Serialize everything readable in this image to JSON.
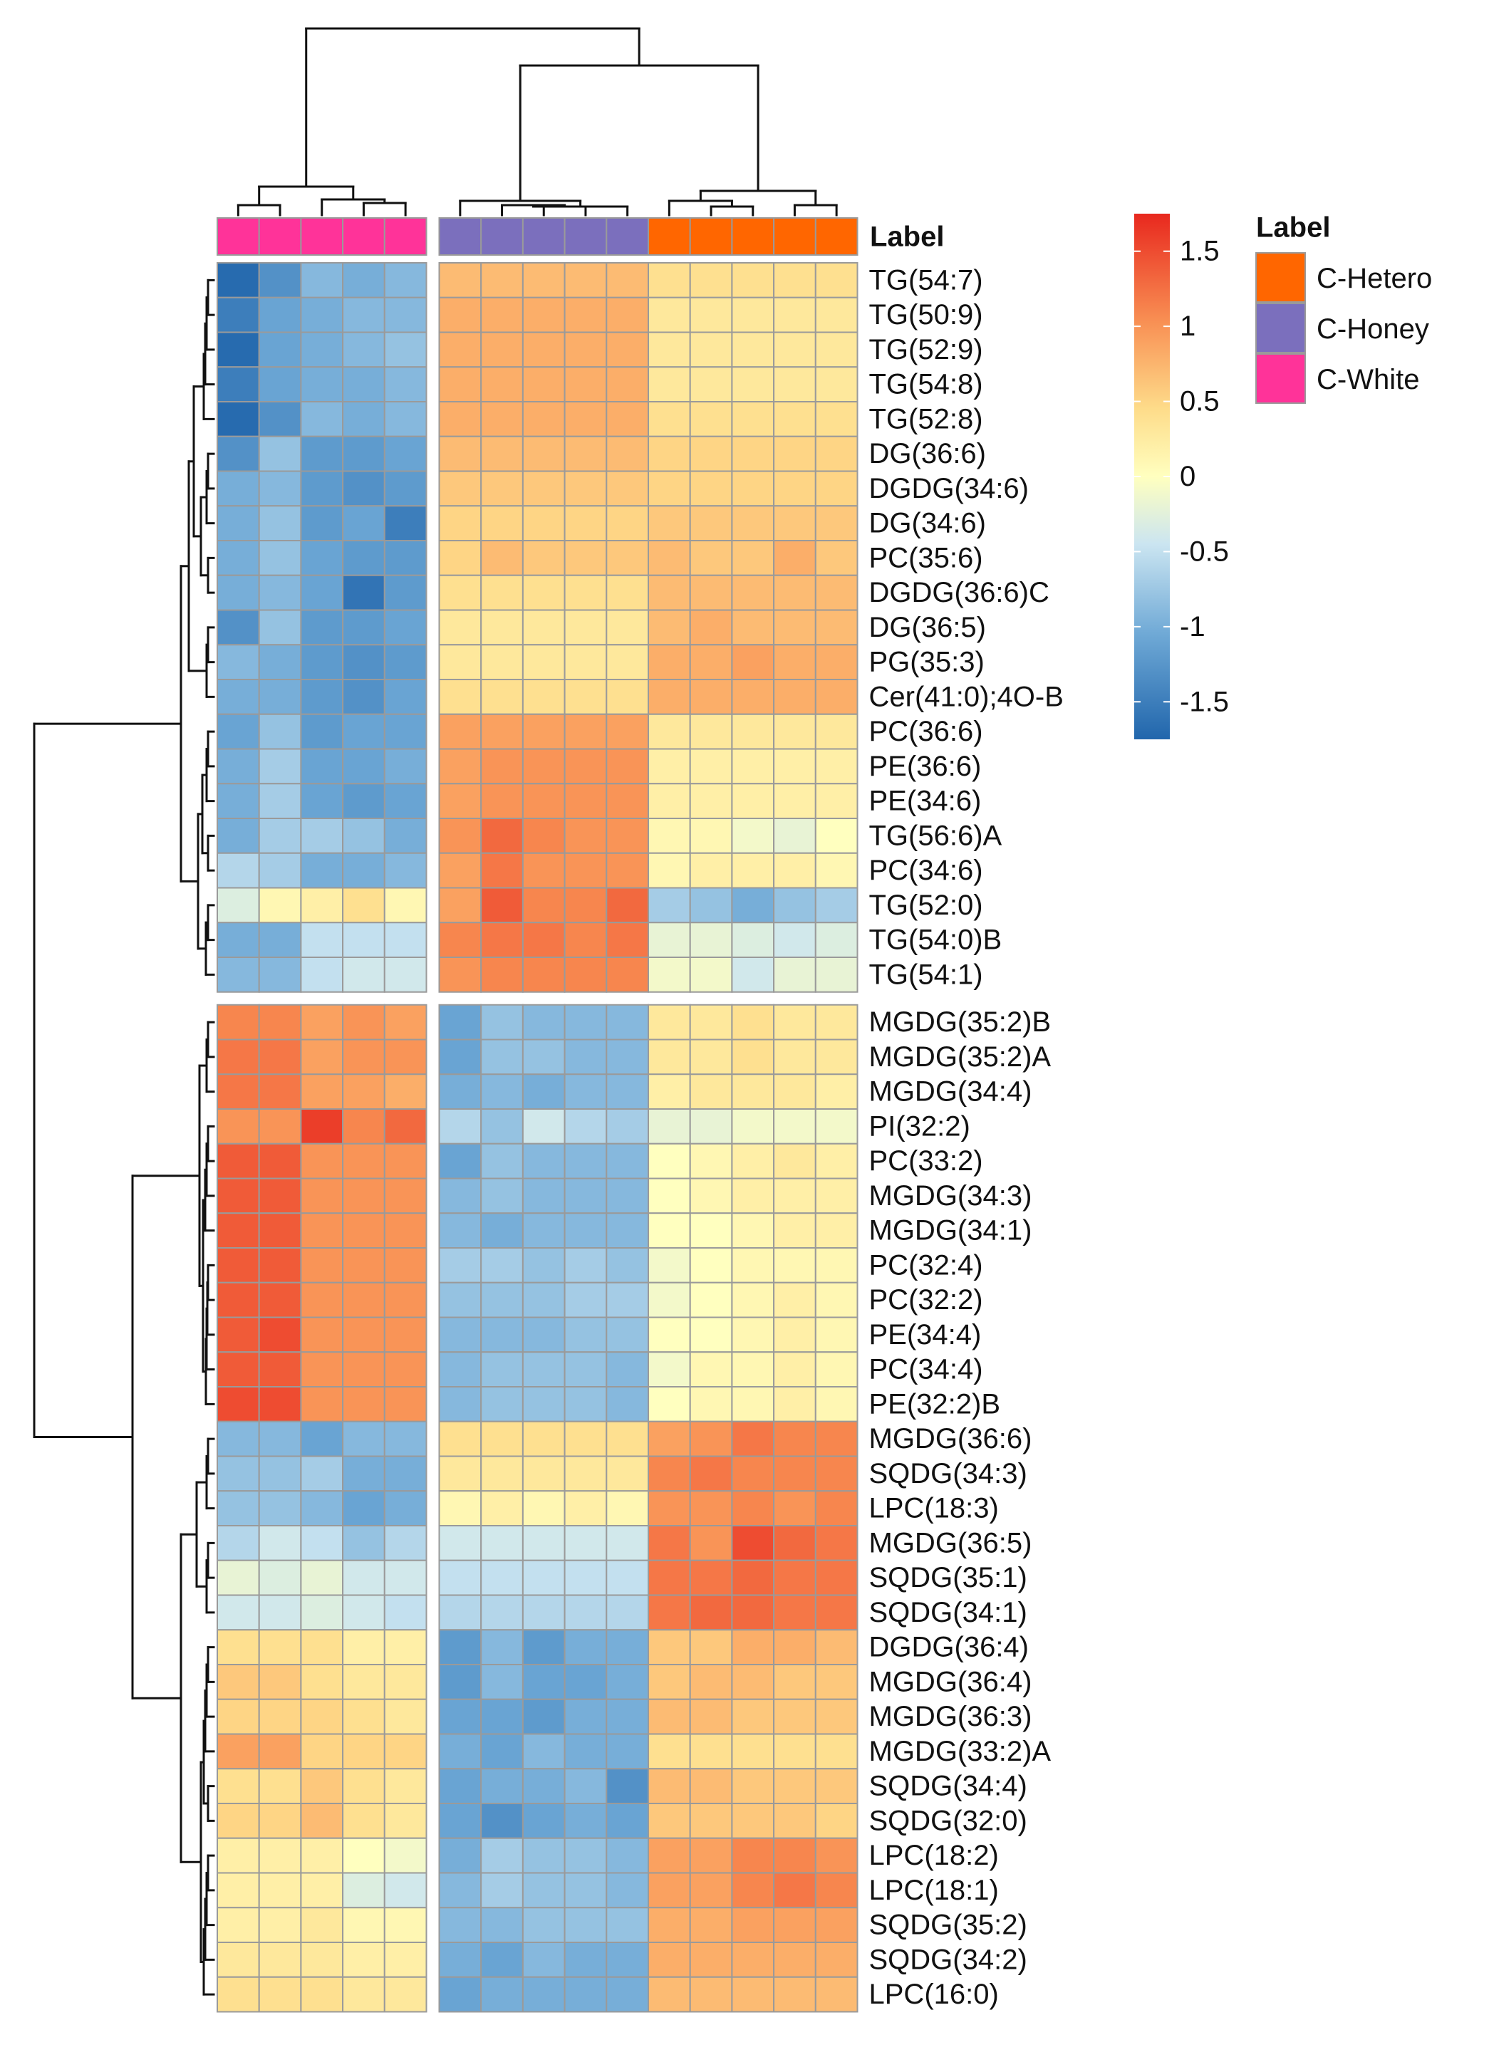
{
  "chart_data": {
    "type": "heatmap",
    "title": "",
    "annotation_title": "Label",
    "columns": [
      {
        "group": "C-White"
      },
      {
        "group": "C-White"
      },
      {
        "group": "C-White"
      },
      {
        "group": "C-White"
      },
      {
        "group": "C-White"
      },
      {
        "group": "C-Honey"
      },
      {
        "group": "C-Honey"
      },
      {
        "group": "C-Honey"
      },
      {
        "group": "C-Honey"
      },
      {
        "group": "C-Honey"
      },
      {
        "group": "C-Hetero"
      },
      {
        "group": "C-Hetero"
      },
      {
        "group": "C-Hetero"
      },
      {
        "group": "C-Hetero"
      },
      {
        "group": "C-Hetero"
      }
    ],
    "row_split_after": 21,
    "rows": [
      "TG(54:7)",
      "TG(50:9)",
      "TG(52:9)",
      "TG(54:8)",
      "TG(52:8)",
      "DG(36:6)",
      "DGDG(34:6)",
      "DG(34:6)",
      "PC(35:6)",
      "DGDG(36:6)C",
      "DG(36:5)",
      "PG(35:3)",
      "Cer(41:0);4O-B",
      "PC(36:6)",
      "PE(36:6)",
      "PE(34:6)",
      "TG(56:6)A",
      "PC(34:6)",
      "TG(52:0)",
      "TG(54:0)B",
      "TG(54:1)",
      "MGDG(35:2)B",
      "MGDG(35:2)A",
      "MGDG(34:4)",
      "PI(32:2)",
      "PC(33:2)",
      "MGDG(34:3)",
      "MGDG(34:1)",
      "PC(32:4)",
      "PC(32:2)",
      "PE(34:4)",
      "PC(34:4)",
      "PE(32:2)B",
      "MGDG(36:6)",
      "SQDG(34:3)",
      "LPC(18:3)",
      "MGDG(36:5)",
      "SQDG(35:1)",
      "SQDG(34:1)",
      "DGDG(36:4)",
      "MGDG(36:4)",
      "MGDG(36:3)",
      "MGDG(33:2)A",
      "SQDG(34:4)",
      "SQDG(32:0)",
      "LPC(18:2)",
      "LPC(18:1)",
      "SQDG(35:2)",
      "SQDG(34:2)",
      "LPC(16:0)"
    ],
    "values": [
      [
        -1.7,
        -1.3,
        -0.9,
        -1.0,
        -0.9,
        0.7,
        0.7,
        0.7,
        0.7,
        0.7,
        0.4,
        0.4,
        0.4,
        0.4,
        0.4
      ],
      [
        -1.5,
        -1.1,
        -1.0,
        -0.9,
        -0.9,
        0.8,
        0.8,
        0.8,
        0.8,
        0.8,
        0.3,
        0.3,
        0.3,
        0.3,
        0.3
      ],
      [
        -1.7,
        -1.1,
        -1.0,
        -0.9,
        -0.8,
        0.8,
        0.8,
        0.8,
        0.8,
        0.8,
        0.3,
        0.3,
        0.3,
        0.3,
        0.3
      ],
      [
        -1.5,
        -1.1,
        -1.0,
        -1.0,
        -0.9,
        0.8,
        0.8,
        0.8,
        0.8,
        0.8,
        0.3,
        0.3,
        0.3,
        0.3,
        0.3
      ],
      [
        -1.7,
        -1.3,
        -0.9,
        -1.0,
        -0.9,
        0.8,
        0.8,
        0.8,
        0.8,
        0.8,
        0.4,
        0.4,
        0.4,
        0.4,
        0.4
      ],
      [
        -1.3,
        -0.8,
        -1.2,
        -1.2,
        -1.1,
        0.7,
        0.7,
        0.7,
        0.7,
        0.7,
        0.5,
        0.5,
        0.5,
        0.5,
        0.5
      ],
      [
        -1.0,
        -0.9,
        -1.2,
        -1.3,
        -1.2,
        0.6,
        0.6,
        0.6,
        0.6,
        0.6,
        0.5,
        0.5,
        0.5,
        0.5,
        0.5
      ],
      [
        -1.0,
        -0.8,
        -1.2,
        -1.1,
        -1.5,
        0.5,
        0.5,
        0.5,
        0.5,
        0.5,
        0.6,
        0.6,
        0.6,
        0.6,
        0.6
      ],
      [
        -1.0,
        -0.8,
        -1.1,
        -1.2,
        -1.2,
        0.5,
        0.7,
        0.6,
        0.6,
        0.6,
        0.7,
        0.6,
        0.6,
        0.8,
        0.6
      ],
      [
        -1.0,
        -0.9,
        -1.1,
        -1.6,
        -1.2,
        0.4,
        0.4,
        0.4,
        0.4,
        0.4,
        0.7,
        0.7,
        0.7,
        0.7,
        0.7
      ],
      [
        -1.3,
        -0.8,
        -1.2,
        -1.2,
        -1.1,
        0.3,
        0.3,
        0.3,
        0.3,
        0.3,
        0.7,
        0.8,
        0.7,
        0.7,
        0.7
      ],
      [
        -0.9,
        -1.0,
        -1.2,
        -1.3,
        -1.2,
        0.3,
        0.3,
        0.3,
        0.3,
        0.3,
        0.8,
        0.8,
        0.9,
        0.8,
        0.8
      ],
      [
        -1.0,
        -1.0,
        -1.2,
        -1.3,
        -1.1,
        0.4,
        0.4,
        0.4,
        0.4,
        0.4,
        0.8,
        0.8,
        0.8,
        0.8,
        0.8
      ],
      [
        -1.1,
        -0.8,
        -1.2,
        -1.1,
        -1.1,
        0.9,
        0.9,
        0.9,
        0.9,
        0.9,
        0.3,
        0.3,
        0.3,
        0.3,
        0.3
      ],
      [
        -1.0,
        -0.7,
        -1.1,
        -1.1,
        -1.0,
        0.9,
        1.0,
        1.0,
        1.0,
        1.0,
        0.2,
        0.2,
        0.2,
        0.2,
        0.2
      ],
      [
        -1.0,
        -0.7,
        -1.1,
        -1.2,
        -1.1,
        0.9,
        1.0,
        1.0,
        1.0,
        1.0,
        0.2,
        0.2,
        0.2,
        0.2,
        0.2
      ],
      [
        -1.0,
        -0.7,
        -0.7,
        -0.8,
        -1.0,
        1.0,
        1.3,
        1.1,
        1.0,
        1.0,
        0.1,
        0.1,
        -0.1,
        -0.2,
        0.0
      ],
      [
        -0.6,
        -0.7,
        -1.0,
        -1.0,
        -0.9,
        0.9,
        1.2,
        1.0,
        1.0,
        1.0,
        0.1,
        0.2,
        0.2,
        0.2,
        0.1
      ],
      [
        -0.3,
        0.1,
        0.2,
        0.4,
        0.1,
        0.9,
        1.4,
        1.1,
        1.1,
        1.3,
        -0.7,
        -0.8,
        -1.0,
        -0.8,
        -0.7
      ],
      [
        -1.0,
        -1.0,
        -0.5,
        -0.5,
        -0.5,
        1.1,
        1.2,
        1.2,
        1.1,
        1.2,
        -0.2,
        -0.2,
        -0.3,
        -0.4,
        -0.3
      ],
      [
        -0.9,
        -0.9,
        -0.5,
        -0.4,
        -0.4,
        1.0,
        1.1,
        1.1,
        1.1,
        1.1,
        -0.1,
        -0.1,
        -0.4,
        -0.2,
        -0.2
      ],
      [
        1.1,
        1.1,
        0.9,
        1.0,
        0.9,
        -1.1,
        -0.8,
        -0.9,
        -0.9,
        -0.9,
        0.3,
        0.3,
        0.4,
        0.3,
        0.3
      ],
      [
        1.2,
        1.2,
        0.9,
        1.0,
        1.0,
        -1.1,
        -0.8,
        -0.8,
        -0.9,
        -0.9,
        0.3,
        0.3,
        0.4,
        0.3,
        0.3
      ],
      [
        1.2,
        1.2,
        0.9,
        0.9,
        0.8,
        -1.0,
        -0.9,
        -1.0,
        -0.9,
        -0.9,
        0.2,
        0.3,
        0.3,
        0.3,
        0.2
      ],
      [
        1.0,
        1.0,
        1.6,
        1.1,
        1.3,
        -0.6,
        -0.8,
        -0.4,
        -0.6,
        -0.7,
        -0.2,
        -0.2,
        -0.1,
        -0.1,
        -0.1
      ],
      [
        1.4,
        1.4,
        1.0,
        1.0,
        1.0,
        -1.1,
        -0.8,
        -0.9,
        -0.9,
        -0.9,
        0.0,
        0.1,
        0.2,
        0.3,
        0.2
      ],
      [
        1.4,
        1.4,
        1.0,
        1.0,
        1.0,
        -0.9,
        -0.8,
        -0.9,
        -0.9,
        -0.9,
        0.0,
        0.1,
        0.2,
        0.2,
        0.2
      ],
      [
        1.4,
        1.4,
        1.0,
        1.0,
        1.0,
        -0.9,
        -1.0,
        -0.9,
        -0.9,
        -0.9,
        0.0,
        0.0,
        0.1,
        0.2,
        0.2
      ],
      [
        1.4,
        1.4,
        1.0,
        1.0,
        1.0,
        -0.7,
        -0.7,
        -0.8,
        -0.7,
        -0.8,
        -0.1,
        0.0,
        0.1,
        0.1,
        0.1
      ],
      [
        1.4,
        1.4,
        1.0,
        1.0,
        1.0,
        -0.8,
        -0.8,
        -0.8,
        -0.7,
        -0.7,
        -0.1,
        0.0,
        0.1,
        0.2,
        0.1
      ],
      [
        1.4,
        1.5,
        1.0,
        1.0,
        1.0,
        -0.9,
        -0.9,
        -0.9,
        -0.8,
        -0.8,
        0.0,
        0.0,
        0.1,
        0.2,
        0.1
      ],
      [
        1.4,
        1.4,
        1.0,
        1.0,
        1.0,
        -0.9,
        -0.8,
        -0.8,
        -0.8,
        -0.9,
        -0.1,
        0.1,
        0.1,
        0.2,
        0.1
      ],
      [
        1.5,
        1.5,
        1.0,
        1.0,
        1.0,
        -0.9,
        -0.8,
        -0.8,
        -0.8,
        -0.9,
        0.0,
        0.1,
        0.1,
        0.2,
        0.1
      ],
      [
        -0.9,
        -0.9,
        -1.1,
        -0.9,
        -0.9,
        0.4,
        0.4,
        0.4,
        0.4,
        0.4,
        0.9,
        1.0,
        1.2,
        1.1,
        1.1
      ],
      [
        -0.8,
        -0.8,
        -0.7,
        -1.0,
        -1.0,
        0.3,
        0.3,
        0.3,
        0.3,
        0.3,
        1.1,
        1.2,
        1.1,
        1.1,
        1.1
      ],
      [
        -0.8,
        -0.8,
        -0.9,
        -1.1,
        -1.0,
        0.1,
        0.2,
        0.1,
        0.2,
        0.1,
        1.0,
        1.0,
        1.1,
        1.0,
        1.1
      ],
      [
        -0.6,
        -0.4,
        -0.5,
        -0.8,
        -0.6,
        -0.4,
        -0.4,
        -0.4,
        -0.4,
        -0.4,
        1.2,
        1.0,
        1.5,
        1.3,
        1.2
      ],
      [
        -0.2,
        -0.3,
        -0.2,
        -0.4,
        -0.4,
        -0.5,
        -0.5,
        -0.5,
        -0.5,
        -0.5,
        1.2,
        1.2,
        1.3,
        1.2,
        1.2
      ],
      [
        -0.4,
        -0.4,
        -0.3,
        -0.4,
        -0.5,
        -0.6,
        -0.6,
        -0.6,
        -0.6,
        -0.6,
        1.2,
        1.3,
        1.3,
        1.2,
        1.2
      ],
      [
        0.4,
        0.4,
        0.4,
        0.2,
        0.2,
        -1.2,
        -0.9,
        -1.2,
        -1.0,
        -1.0,
        0.6,
        0.6,
        0.8,
        0.8,
        0.7
      ],
      [
        0.6,
        0.6,
        0.4,
        0.3,
        0.3,
        -1.2,
        -0.9,
        -1.1,
        -1.1,
        -1.0,
        0.6,
        0.7,
        0.7,
        0.6,
        0.6
      ],
      [
        0.5,
        0.5,
        0.5,
        0.4,
        0.3,
        -1.1,
        -1.1,
        -1.2,
        -1.0,
        -1.0,
        0.7,
        0.7,
        0.6,
        0.6,
        0.6
      ],
      [
        0.9,
        0.9,
        0.5,
        0.5,
        0.5,
        -1.0,
        -1.1,
        -0.9,
        -1.0,
        -1.0,
        0.4,
        0.4,
        0.4,
        0.4,
        0.4
      ],
      [
        0.4,
        0.4,
        0.6,
        0.4,
        0.3,
        -1.1,
        -1.0,
        -1.0,
        -0.9,
        -1.3,
        0.7,
        0.7,
        0.6,
        0.6,
        0.6
      ],
      [
        0.5,
        0.5,
        0.7,
        0.4,
        0.3,
        -1.1,
        -1.3,
        -1.1,
        -1.0,
        -1.1,
        0.6,
        0.6,
        0.6,
        0.6,
        0.5
      ],
      [
        0.2,
        0.2,
        0.2,
        0.0,
        -0.1,
        -1.0,
        -0.7,
        -0.8,
        -0.8,
        -0.9,
        0.9,
        0.9,
        1.1,
        1.1,
        1.0
      ],
      [
        0.2,
        0.2,
        0.2,
        -0.3,
        -0.4,
        -0.9,
        -0.7,
        -0.8,
        -0.8,
        -0.9,
        0.9,
        0.9,
        1.1,
        1.2,
        1.1
      ],
      [
        0.2,
        0.2,
        0.3,
        0.1,
        0.1,
        -0.9,
        -0.9,
        -0.8,
        -0.8,
        -0.8,
        0.8,
        0.8,
        0.9,
        0.9,
        0.9
      ],
      [
        0.3,
        0.3,
        0.3,
        0.2,
        0.2,
        -1.0,
        -1.1,
        -0.9,
        -1.0,
        -1.0,
        0.8,
        0.8,
        0.8,
        0.8,
        0.8
      ],
      [
        0.4,
        0.4,
        0.4,
        0.3,
        0.3,
        -1.1,
        -1.0,
        -1.0,
        -1.0,
        -1.0,
        0.7,
        0.7,
        0.7,
        0.7,
        0.7
      ]
    ],
    "color_scale": {
      "range": [
        -1.75,
        1.75
      ],
      "stops": [
        {
          "value": -1.75,
          "color": "#2166ac"
        },
        {
          "value": -1.05,
          "color": "#6fa9d6"
        },
        {
          "value": -0.45,
          "color": "#cbe5f1"
        },
        {
          "value": 0.0,
          "color": "#ffffbf"
        },
        {
          "value": 0.45,
          "color": "#fedc8a"
        },
        {
          "value": 1.05,
          "color": "#f88d52"
        },
        {
          "value": 1.75,
          "color": "#e8281e"
        }
      ],
      "ticks": [
        {
          "value": 1.5,
          "label": "1.5"
        },
        {
          "value": 1.0,
          "label": "1"
        },
        {
          "value": 0.5,
          "label": "0.5"
        },
        {
          "value": 0.0,
          "label": "0"
        },
        {
          "value": -0.5,
          "label": "-0.5"
        },
        {
          "value": -1.0,
          "label": "-1"
        },
        {
          "value": -1.5,
          "label": "-1.5"
        }
      ]
    },
    "legend": {
      "title": "Label",
      "entries": [
        {
          "label": "C-Hetero",
          "color": "#ff6600"
        },
        {
          "label": "C-Honey",
          "color": "#7b6fbd"
        },
        {
          "label": "C-White",
          "color": "#ff3399"
        }
      ]
    }
  }
}
